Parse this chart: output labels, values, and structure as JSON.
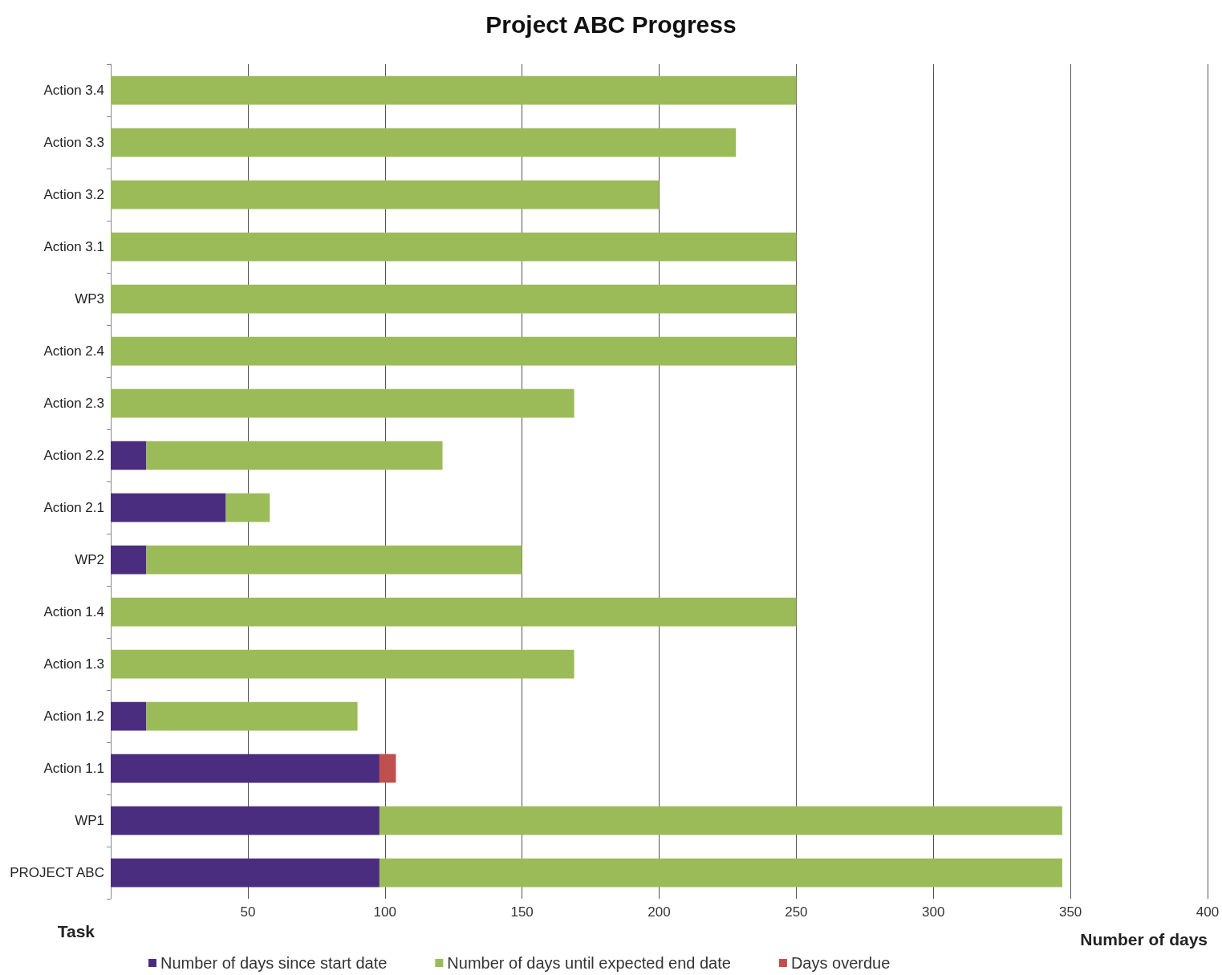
{
  "chart_data": {
    "type": "bar",
    "orientation": "horizontal",
    "stacked": true,
    "title": "Project ABC Progress",
    "xlabel": "Number of days",
    "ylabel": "Task",
    "categories": [
      "Action 3.4",
      "Action 3.3",
      "Action 3.2",
      "Action 3.1",
      "WP3",
      "Action 2.4",
      "Action 2.3",
      "Action 2.2",
      "Action 2.1",
      "WP2",
      "Action 1.4",
      "Action 1.3",
      "Action 1.2",
      "Action 1.1",
      "WP1",
      "PROJECT ABC"
    ],
    "series": [
      {
        "name": "Number of days since start date",
        "color": "#4b2d7f",
        "values": [
          null,
          null,
          null,
          null,
          null,
          null,
          null,
          13,
          42,
          13,
          null,
          null,
          13,
          98,
          98,
          98
        ]
      },
      {
        "name": "Number of days until expected end date",
        "color": "#9bbb59",
        "values": [
          250,
          228,
          200,
          250,
          250,
          250,
          169,
          108,
          16,
          137,
          250,
          169,
          77,
          null,
          249,
          249
        ]
      },
      {
        "name": "Days overdue",
        "color": "#c0504d",
        "values": [
          null,
          null,
          null,
          null,
          null,
          null,
          null,
          null,
          null,
          null,
          null,
          null,
          null,
          6,
          null,
          null
        ]
      }
    ],
    "xlim": [
      0,
      400
    ],
    "xticks": [
      50,
      100,
      150,
      200,
      250,
      300,
      350,
      400
    ],
    "grid": "x",
    "legend": "bottom"
  }
}
